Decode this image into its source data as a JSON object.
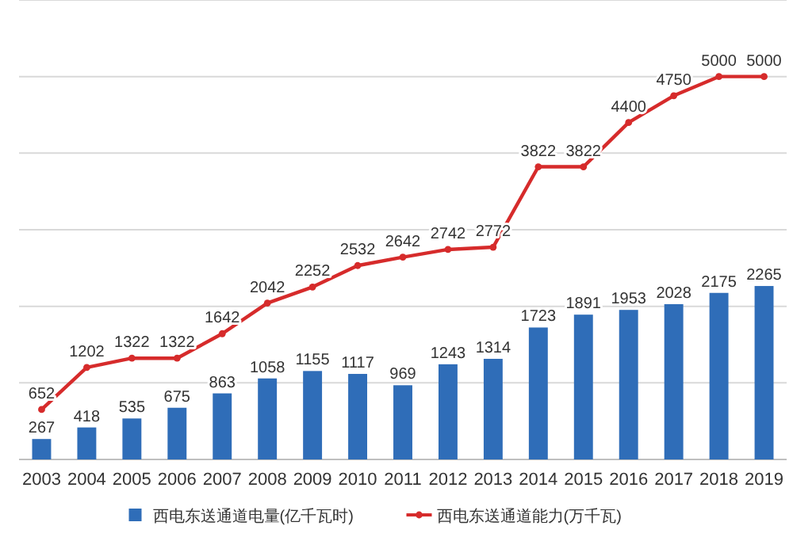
{
  "chart_data": {
    "type": "bar",
    "categories": [
      "2003",
      "2004",
      "2005",
      "2006",
      "2007",
      "2008",
      "2009",
      "2010",
      "2011",
      "2012",
      "2013",
      "2014",
      "2015",
      "2016",
      "2017",
      "2018",
      "2019"
    ],
    "series": [
      {
        "name": "西电东送通道电量(亿千瓦时)",
        "color": "#2f6db8",
        "values": [
          267,
          418,
          535,
          675,
          863,
          1058,
          1155,
          1117,
          969,
          1243,
          1314,
          1723,
          1891,
          1953,
          2028,
          2175,
          2265
        ]
      },
      {
        "name": "西电东送通道能力(万千瓦)",
        "type": "line",
        "color": "#d62b2b",
        "values": [
          652,
          1202,
          1322,
          1322,
          1642,
          2042,
          2252,
          2532,
          2642,
          2742,
          2772,
          3822,
          3822,
          4400,
          4750,
          5000,
          5000
        ]
      }
    ],
    "ylim": [
      0,
      6000
    ],
    "yticks": [
      {
        "value": 0,
        "label": null
      },
      {
        "value": 1000,
        "label": null
      },
      {
        "value": 2000,
        "label": null
      },
      {
        "value": 3000,
        "label": null
      },
      {
        "value": 4000,
        "label": null
      },
      {
        "value": 5000,
        "label": null
      },
      {
        "value": 6000,
        "label": null
      }
    ],
    "tick_labels": "x",
    "grid": "y",
    "legend": "bottom",
    "marker": "circle",
    "data_labels": true
  }
}
